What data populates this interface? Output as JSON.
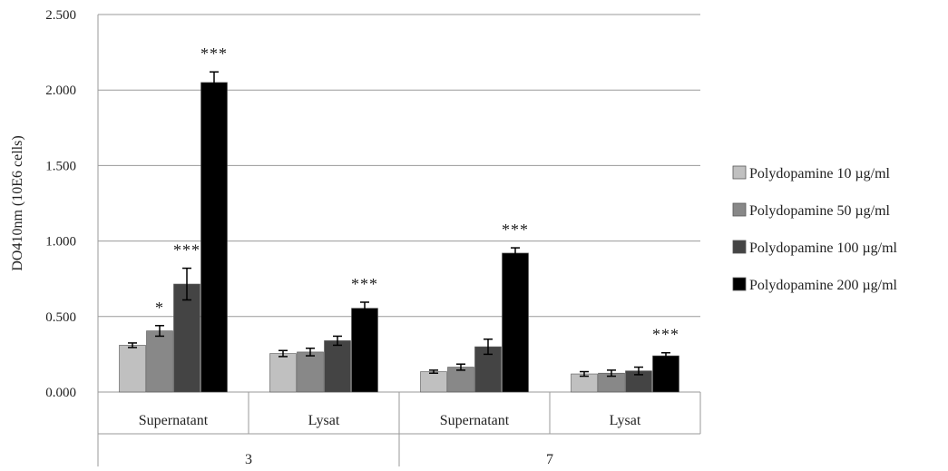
{
  "chart_data": {
    "type": "bar",
    "title": "",
    "xlabel": "",
    "ylabel": "DO410nm (10E6 cells)",
    "ylim": [
      0,
      2.5
    ],
    "yticks": [
      "0.000",
      "0.500",
      "1.000",
      "1.500",
      "2.000",
      "2.500"
    ],
    "ytick_values": [
      0,
      0.5,
      1.0,
      1.5,
      2.0,
      2.5
    ],
    "grid": true,
    "legend_position": "right",
    "groups": [
      {
        "label": "3",
        "categories": [
          "Supernatant",
          "Lysat"
        ]
      },
      {
        "label": "7",
        "categories": [
          "Supernatant",
          "Lysat"
        ]
      }
    ],
    "categories": [
      "Supernatant",
      "Lysat",
      "Supernatant",
      "Lysat"
    ],
    "series": [
      {
        "name": "Polydopamine 10 µg/ml",
        "color": "#c0c0c0",
        "values": [
          0.31,
          0.255,
          0.135,
          0.12
        ],
        "errors": [
          0.015,
          0.02,
          0.01,
          0.015
        ]
      },
      {
        "name": "Polydopamine 50 µg/ml",
        "color": "#888888",
        "values": [
          0.405,
          0.265,
          0.165,
          0.125
        ],
        "errors": [
          0.035,
          0.025,
          0.02,
          0.02
        ]
      },
      {
        "name": "Polydopamine 100 µg/ml",
        "color": "#444444",
        "values": [
          0.715,
          0.34,
          0.3,
          0.14
        ],
        "errors": [
          0.105,
          0.03,
          0.05,
          0.025
        ]
      },
      {
        "name": "Polydopamine 200 µg/ml",
        "color": "#000000",
        "values": [
          2.05,
          0.555,
          0.92,
          0.24
        ],
        "errors": [
          0.07,
          0.04,
          0.035,
          0.02
        ]
      }
    ],
    "significance": [
      [
        "",
        "*",
        "***",
        "***"
      ],
      [
        "",
        "",
        "",
        "***"
      ],
      [
        "",
        "",
        "",
        "***"
      ],
      [
        "",
        "",
        "",
        "***"
      ]
    ]
  }
}
